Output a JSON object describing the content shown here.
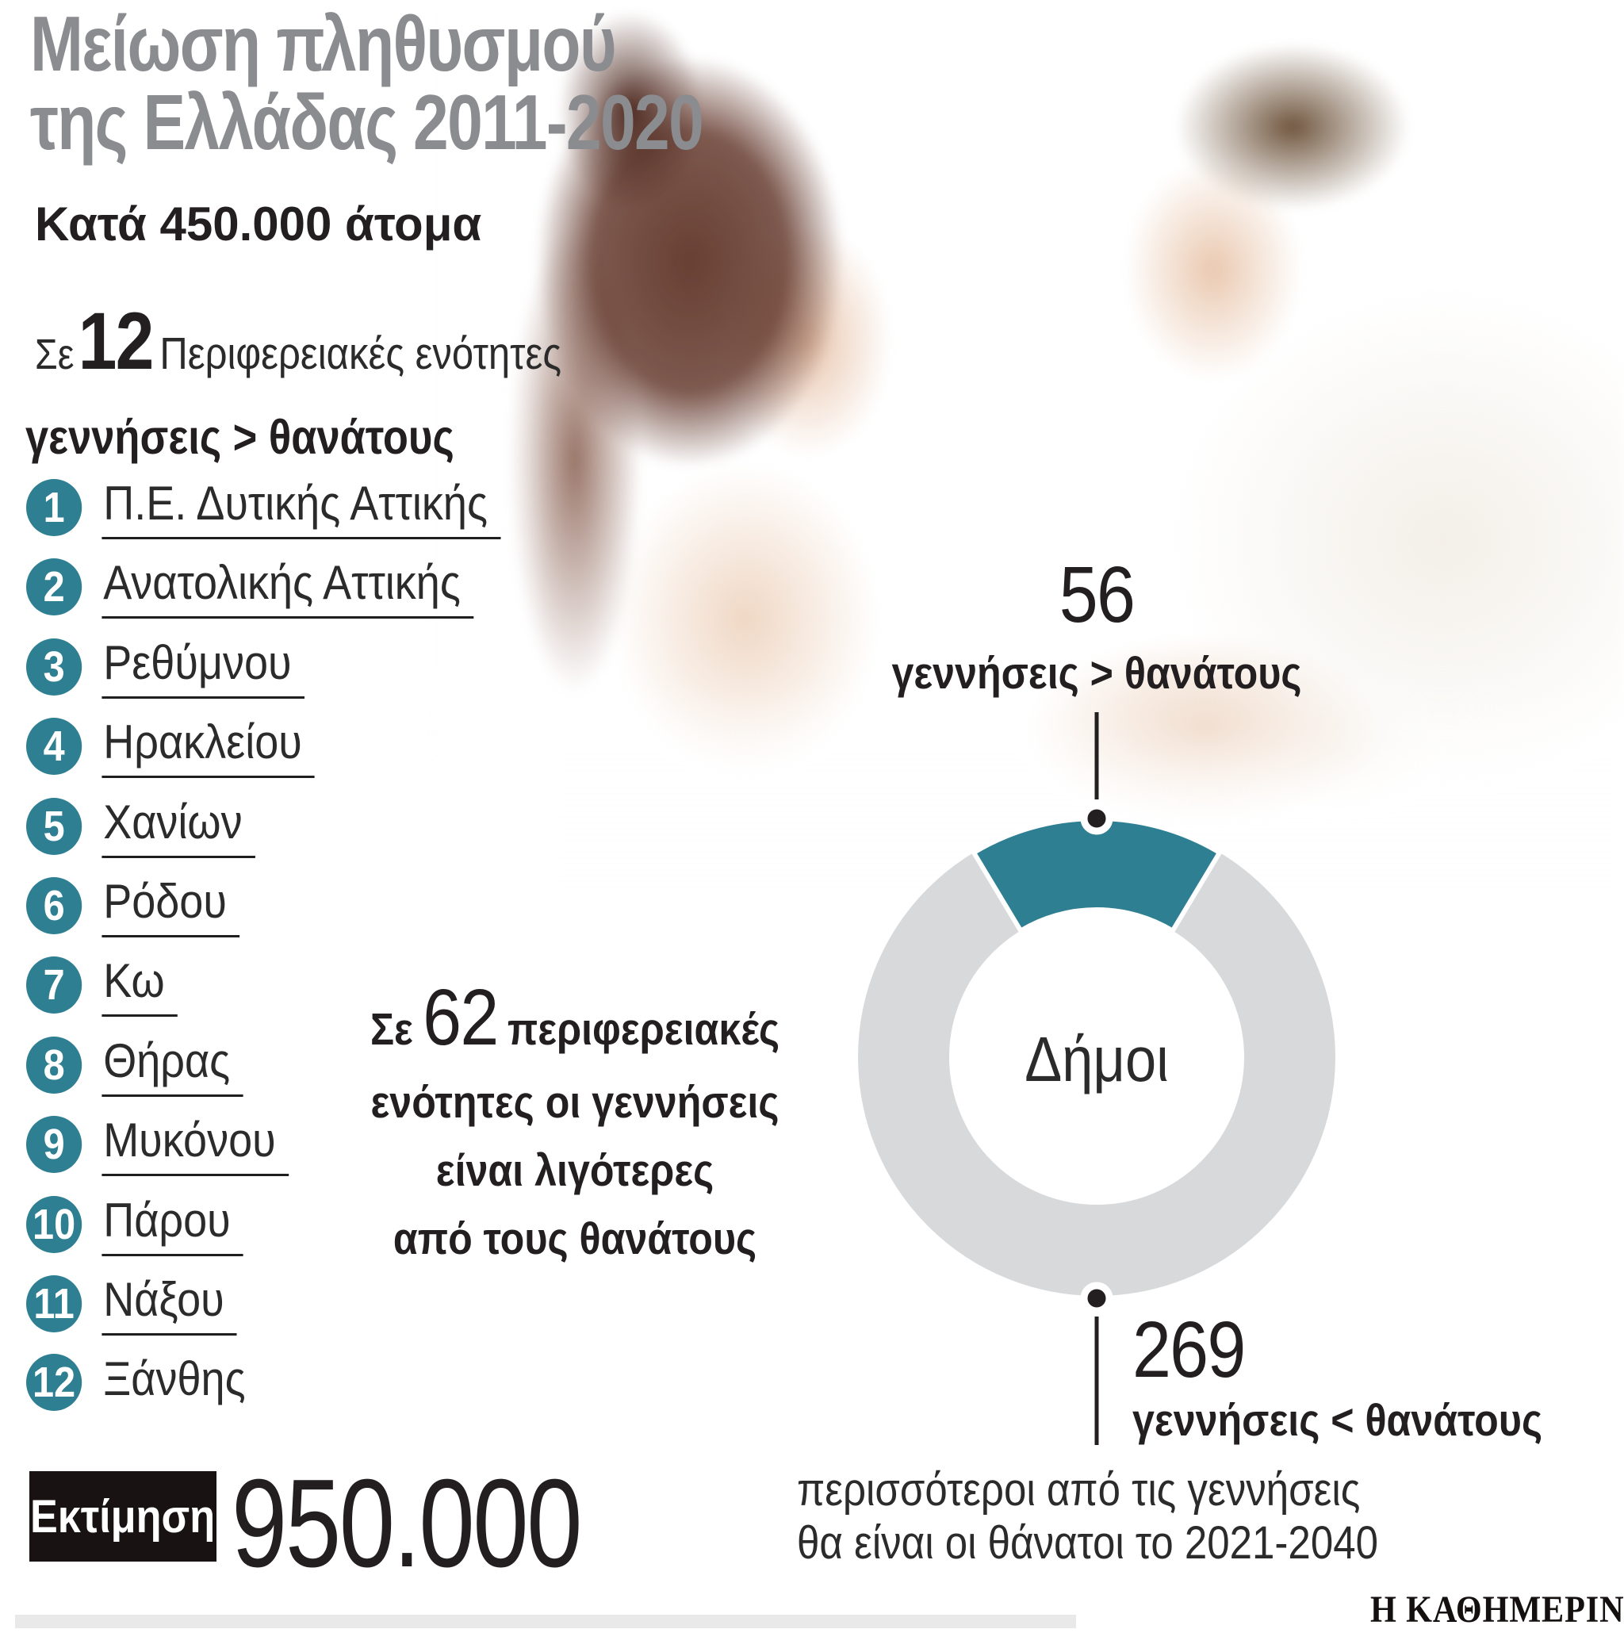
{
  "title": {
    "line1": "Μείωση πληθυσμού",
    "line2": "της Ελλάδας 2011-2020"
  },
  "subtitle": "Κατά 450.000 άτομα",
  "intro": {
    "prefix": "Σε",
    "count": "12",
    "suffix": "Περιφερειακές ενότητες"
  },
  "condition": "γεννήσεις > θανάτους",
  "regions": [
    {
      "num": "1",
      "name": "Π.Ε. Δυτικής Αττικής"
    },
    {
      "num": "2",
      "name": "Ανατολικής Αττικής"
    },
    {
      "num": "3",
      "name": "Ρεθύμνου"
    },
    {
      "num": "4",
      "name": "Ηρακλείου"
    },
    {
      "num": "5",
      "name": "Χανίων"
    },
    {
      "num": "6",
      "name": "Ρόδου"
    },
    {
      "num": "7",
      "name": "Κω"
    },
    {
      "num": "8",
      "name": "Θήρας"
    },
    {
      "num": "9",
      "name": "Μυκόνου"
    },
    {
      "num": "10",
      "name": "Πάρου"
    },
    {
      "num": "11",
      "name": "Νάξου"
    },
    {
      "num": "12",
      "name": "Ξάνθης"
    }
  ],
  "middle_note": {
    "prefix": "Σε",
    "count": "62",
    "line1_rest": "περιφερειακές",
    "line2": "ενότητες οι γεννήσεις",
    "line3": "είναι λιγότερες",
    "line4": "από τους θανάτους"
  },
  "donut": {
    "center_label": "Δήμοι",
    "top": {
      "value": "56",
      "label": "γεννήσεις > θανάτους"
    },
    "bottom": {
      "value": "269",
      "label": "γεννήσεις < θανάτους"
    }
  },
  "estimate": {
    "badge": "Εκτίμηση",
    "value": "950.000",
    "line1": "περισσότεροι από τις γεννήσεις",
    "line2": "θα είναι οι θάνατοι το 2021-2040"
  },
  "footer": {
    "logo": "Η ΚΑΘΗΜΕΡΙΝΗ"
  },
  "colors": {
    "teal": "#2f7f93",
    "donut_gray": "#d7d9db",
    "title_gray": "#8a8c90",
    "ink": "#231f20",
    "footer_bar": "#e9e9e9"
  },
  "chart_data": {
    "type": "pie",
    "donut": true,
    "center_label": "Δήμοι",
    "labels": [
      "γεννήσεις > θανάτους",
      "γεννήσεις < θανάτους"
    ],
    "values": [
      56,
      269
    ],
    "colors": [
      "#2f7f93",
      "#d7d9db"
    ],
    "wedge_centered_at_top": true,
    "teal_wedge_span_deg": 62,
    "annotations": {
      "regions_with_more_births": 12,
      "regions_with_more_deaths": 62,
      "population_decline_2011_2020": "450.000",
      "estimated_excess_deaths_2021_2040": "950.000"
    },
    "legend_position": "connector-labels"
  }
}
